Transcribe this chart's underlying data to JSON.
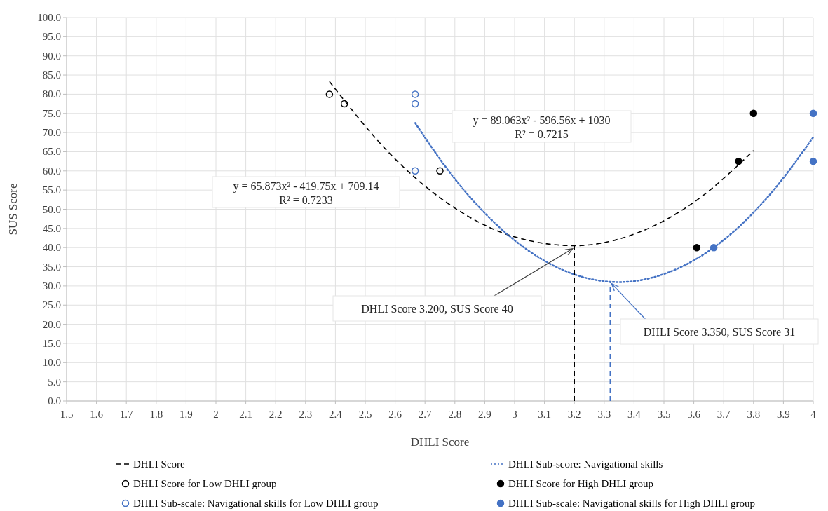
{
  "chart_data": {
    "type": "scatter",
    "xlabel": "DHLI Score",
    "ylabel": "SUS Score",
    "xlim": [
      1.5,
      4
    ],
    "ylim": [
      0,
      100
    ],
    "xticks": [
      1.5,
      1.6,
      1.7,
      1.8,
      1.9,
      2,
      2.1,
      2.2,
      2.3,
      2.4,
      2.5,
      2.6,
      2.7,
      2.8,
      2.9,
      3,
      3.1,
      3.2,
      3.3,
      3.4,
      3.5,
      3.6,
      3.7,
      3.8,
      3.9,
      4
    ],
    "yticks": [
      {
        "value": 0,
        "label": "0.0"
      },
      {
        "value": 5,
        "label": "5.0"
      },
      {
        "value": 10,
        "label": "10.0"
      },
      {
        "value": 15,
        "label": "15.0"
      },
      {
        "value": 20,
        "label": "20.0"
      },
      {
        "value": 25,
        "label": "25.0"
      },
      {
        "value": 30,
        "label": "30.0"
      },
      {
        "value": 35,
        "label": "35.0"
      },
      {
        "value": 40,
        "label": "40.0"
      },
      {
        "value": 45,
        "label": "45.0"
      },
      {
        "value": 50,
        "label": "50.0"
      },
      {
        "value": 55,
        "label": "55.0"
      },
      {
        "value": 60,
        "label": "60.0"
      },
      {
        "value": 65,
        "label": "65.0"
      },
      {
        "value": 70,
        "label": "70.0"
      },
      {
        "value": 75,
        "label": "75.0"
      },
      {
        "value": 80,
        "label": "80.0"
      },
      {
        "value": 85,
        "label": "85.0"
      },
      {
        "value": 90,
        "label": "90.0"
      },
      {
        "value": 95,
        "label": "95.0"
      },
      {
        "value": 100,
        "label": "100.0"
      }
    ],
    "grid": true,
    "legend": "bottom",
    "series": [
      {
        "name": "DHLI Score",
        "type": "line",
        "line_style": "dashed",
        "color": "#000000",
        "x": [
          2.38,
          2.6,
          2.8,
          3.0,
          3.2,
          3.4,
          3.6,
          3.8
        ],
        "values": [
          83.3,
          63.1,
          50.3,
          42.8,
          40.5,
          43.5,
          51.8,
          65.3
        ]
      },
      {
        "name": "DHLI Sub-score: Navigational skills",
        "type": "line",
        "line_style": "dotted",
        "color": "#4472c4",
        "x": [
          2.667,
          2.8,
          3.0,
          3.2,
          3.35,
          3.5,
          3.7,
          3.85,
          4.0
        ],
        "values": [
          72.5,
          57.9,
          41.9,
          33.0,
          31.0,
          33.1,
          42.0,
          53.4,
          68.8
        ]
      },
      {
        "name": "DHLI Score for Low DHLI group",
        "marker": "circle-open",
        "color": "#000000",
        "x": [
          2.38,
          2.43,
          2.75
        ],
        "values": [
          80,
          77.5,
          60
        ]
      },
      {
        "name": "DHLI Score for High DHLI group",
        "marker": "circle",
        "color": "#000000",
        "x": [
          3.61,
          3.75,
          3.8
        ],
        "values": [
          40,
          62.5,
          75
        ]
      },
      {
        "name": "DHLI Sub-scale: Navigational skills for Low DHLI group",
        "marker": "circle-open",
        "color": "#4472c4",
        "x": [
          2.667,
          2.667,
          2.667
        ],
        "values": [
          80,
          77.5,
          60
        ]
      },
      {
        "name": "DHLI Sub-scale: Navigational skills for High DHLI group",
        "marker": "circle",
        "color": "#4472c4",
        "x": [
          3.667,
          4,
          4
        ],
        "values": [
          40,
          75,
          62.5
        ]
      },
      {
        "type": "line",
        "line_style": "dashed",
        "color": "#000000",
        "x": [
          3.2,
          3.2
        ],
        "values": [
          0,
          40.5
        ]
      },
      {
        "type": "line",
        "line_style": "dashed",
        "color": "#4472c4",
        "x": [
          3.32,
          3.32
        ],
        "values": [
          0,
          31.0
        ]
      }
    ],
    "annotations": [
      "y = 65.873x² - 419.75x + 709.14",
      "R² = 0.7233",
      "y = 89.063x² - 596.56x + 1030",
      "R² = 0.7215",
      {
        "text": "DHLI Score 3.200, SUS Score 40",
        "x": 3.2,
        "y": 40
      },
      {
        "text": "DHLI Score 3.350, SUS Score 31",
        "x": 3.32,
        "y": 31
      }
    ]
  }
}
